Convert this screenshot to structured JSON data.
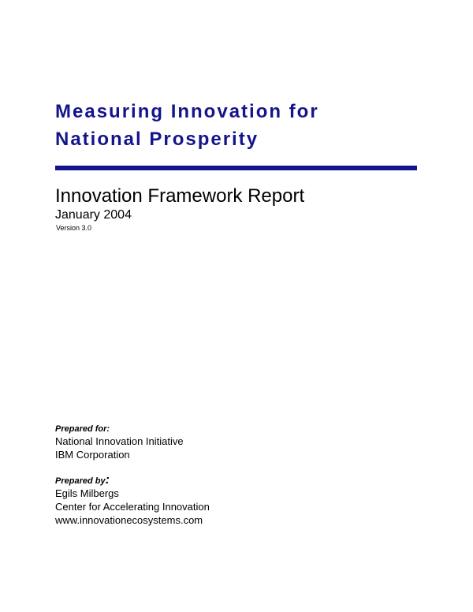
{
  "document": {
    "title_lines": [
      "Measuring Innovation for",
      "National Prosperity"
    ],
    "subtitle": "Innovation Framework Report",
    "date": "January 2004",
    "version": "Version 3.0",
    "title_color": "#14148c",
    "rule_color": "#14148c"
  },
  "prepared_for": {
    "heading": "Prepared for:",
    "lines": [
      "National Innovation Initiative",
      "IBM Corporation"
    ]
  },
  "prepared_by": {
    "heading": "Prepared by",
    "heading_colon": ":",
    "lines": [
      "Egils Milbergs",
      "Center for Accelerating Innovation",
      "www.innovationecosystems.com"
    ]
  }
}
